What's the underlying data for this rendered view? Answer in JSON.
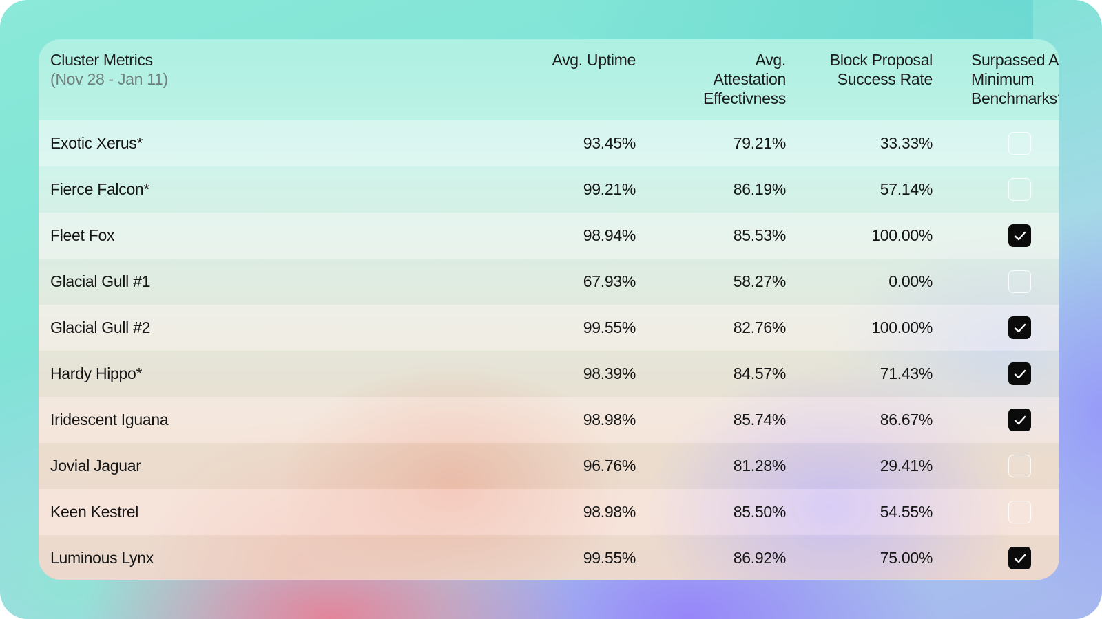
{
  "table": {
    "header": {
      "title": "Cluster Metrics",
      "date_range": "(Nov 28 - Jan 11)",
      "uptime": "Avg. Uptime",
      "attestation": [
        "Avg.",
        "Attestation",
        "Effectivness"
      ],
      "block_proposal": [
        "Block Proposal",
        "Success Rate"
      ],
      "benchmarks": [
        "Surpassed All",
        "Minimum",
        "Benchmarks?"
      ]
    },
    "rows": [
      {
        "name": "Exotic Xerus*",
        "uptime": "93.45%",
        "attestation": "79.21%",
        "block_proposal": "33.33%",
        "surpassed": false
      },
      {
        "name": "Fierce Falcon*",
        "uptime": "99.21%",
        "attestation": "86.19%",
        "block_proposal": "57.14%",
        "surpassed": false
      },
      {
        "name": "Fleet Fox",
        "uptime": "98.94%",
        "attestation": "85.53%",
        "block_proposal": "100.00%",
        "surpassed": true
      },
      {
        "name": "Glacial Gull #1",
        "uptime": "67.93%",
        "attestation": "58.27%",
        "block_proposal": "0.00%",
        "surpassed": false
      },
      {
        "name": "Glacial Gull #2",
        "uptime": "99.55%",
        "attestation": "82.76%",
        "block_proposal": "100.00%",
        "surpassed": true
      },
      {
        "name": "Hardy Hippo*",
        "uptime": "98.39%",
        "attestation": "84.57%",
        "block_proposal": "71.43%",
        "surpassed": true
      },
      {
        "name": "Iridescent Iguana",
        "uptime": "98.98%",
        "attestation": "85.74%",
        "block_proposal": "86.67%",
        "surpassed": true
      },
      {
        "name": "Jovial Jaguar",
        "uptime": "96.76%",
        "attestation": "81.28%",
        "block_proposal": "29.41%",
        "surpassed": false
      },
      {
        "name": "Keen Kestrel",
        "uptime": "98.98%",
        "attestation": "85.50%",
        "block_proposal": "54.55%",
        "surpassed": false
      },
      {
        "name": "Luminous Lynx",
        "uptime": "99.55%",
        "attestation": "86.92%",
        "block_proposal": "75.00%",
        "surpassed": true
      }
    ]
  },
  "icons": {
    "check": "check-icon"
  }
}
